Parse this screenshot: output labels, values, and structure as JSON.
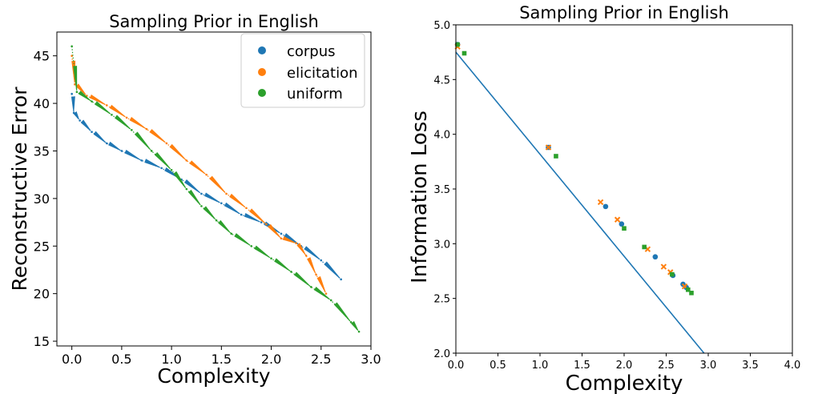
{
  "chart_data": [
    {
      "type": "line",
      "title": "Sampling Prior in English",
      "xlabel": "Complexity",
      "ylabel": "Reconstructive Error",
      "xlim": [
        -0.15,
        3.0
      ],
      "ylim": [
        14.5,
        47.5
      ],
      "xticks": [
        "0.0",
        "0.5",
        "1.0",
        "1.5",
        "2.0",
        "2.5",
        "3.0"
      ],
      "yticks": [
        "15",
        "20",
        "25",
        "30",
        "35",
        "40",
        "45"
      ],
      "legend": {
        "placement": "top-right",
        "entries": [
          "corpus",
          "elicitation",
          "uniform"
        ]
      },
      "colors": {
        "corpus": "#1f77b4",
        "elicitation": "#ff7f0e",
        "uniform": "#2ca02c"
      },
      "grid": false,
      "series": [
        {
          "name": "corpus",
          "x": [
            0.0,
            0.02,
            0.08,
            0.2,
            0.35,
            0.5,
            0.7,
            0.9,
            1.1,
            1.3,
            1.5,
            1.7,
            1.9,
            2.1,
            2.3,
            2.5,
            2.7
          ],
          "y": [
            41.0,
            39.0,
            38.2,
            37.0,
            35.8,
            35.0,
            34.0,
            33.2,
            32.0,
            30.5,
            29.5,
            28.3,
            27.5,
            26.3,
            25.0,
            23.5,
            21.5
          ]
        },
        {
          "name": "elicitation",
          "x": [
            0.0,
            0.03,
            0.15,
            0.35,
            0.55,
            0.75,
            0.95,
            1.15,
            1.35,
            1.55,
            1.75,
            1.95,
            2.1,
            2.25,
            2.35,
            2.45,
            2.55
          ],
          "y": [
            45.0,
            42.0,
            40.8,
            39.8,
            38.5,
            37.3,
            35.8,
            34.0,
            32.5,
            30.5,
            29.0,
            27.3,
            25.8,
            25.3,
            24.0,
            22.0,
            20.0
          ]
        },
        {
          "name": "uniform",
          "x": [
            0.0,
            0.05,
            0.2,
            0.4,
            0.6,
            0.8,
            1.0,
            1.15,
            1.3,
            1.45,
            1.6,
            1.8,
            2.0,
            2.2,
            2.4,
            2.6,
            2.8,
            2.88
          ],
          "y": [
            46.0,
            41.2,
            40.2,
            38.8,
            37.2,
            35.0,
            33.0,
            31.0,
            29.2,
            27.7,
            26.3,
            25.0,
            23.7,
            22.3,
            20.7,
            19.3,
            17.0,
            16.0
          ]
        }
      ]
    },
    {
      "type": "scatter",
      "title": "Sampling Prior in English",
      "xlabel": "Complexity",
      "ylabel": "Information Loss",
      "xlim": [
        0.0,
        4.0
      ],
      "ylim": [
        2.0,
        5.0
      ],
      "xticks": [
        "0.0",
        "0.5",
        "1.0",
        "1.5",
        "2.0",
        "2.5",
        "3.0",
        "3.5",
        "4.0"
      ],
      "yticks": [
        "2.0",
        "2.5",
        "3.0",
        "3.5",
        "4.0",
        "4.5",
        "5.0"
      ],
      "grid": false,
      "colors": {
        "corpus": "#1f77b4",
        "elicitation": "#ff7f0e",
        "uniform": "#2ca02c",
        "line": "#1f77b4"
      },
      "line": {
        "x": [
          0.0,
          2.95
        ],
        "y": [
          4.75,
          2.0
        ]
      },
      "series": [
        {
          "name": "corpus",
          "marker": "circle",
          "x": [
            0.02,
            1.1,
            1.78,
            1.97,
            2.37,
            2.58,
            2.7,
            2.74
          ],
          "y": [
            4.82,
            3.88,
            3.34,
            3.18,
            2.88,
            2.71,
            2.63,
            2.6
          ]
        },
        {
          "name": "elicitation",
          "marker": "x",
          "x": [
            0.02,
            1.1,
            1.72,
            1.92,
            2.28,
            2.47,
            2.55,
            2.72
          ],
          "y": [
            4.8,
            3.88,
            3.38,
            3.22,
            2.95,
            2.79,
            2.74,
            2.61
          ]
        },
        {
          "name": "uniform",
          "marker": "square",
          "x": [
            0.02,
            0.1,
            1.19,
            2.0,
            2.24,
            2.57,
            2.76,
            2.8
          ],
          "y": [
            4.82,
            4.74,
            3.8,
            3.14,
            2.97,
            2.72,
            2.58,
            2.55
          ]
        }
      ]
    }
  ]
}
